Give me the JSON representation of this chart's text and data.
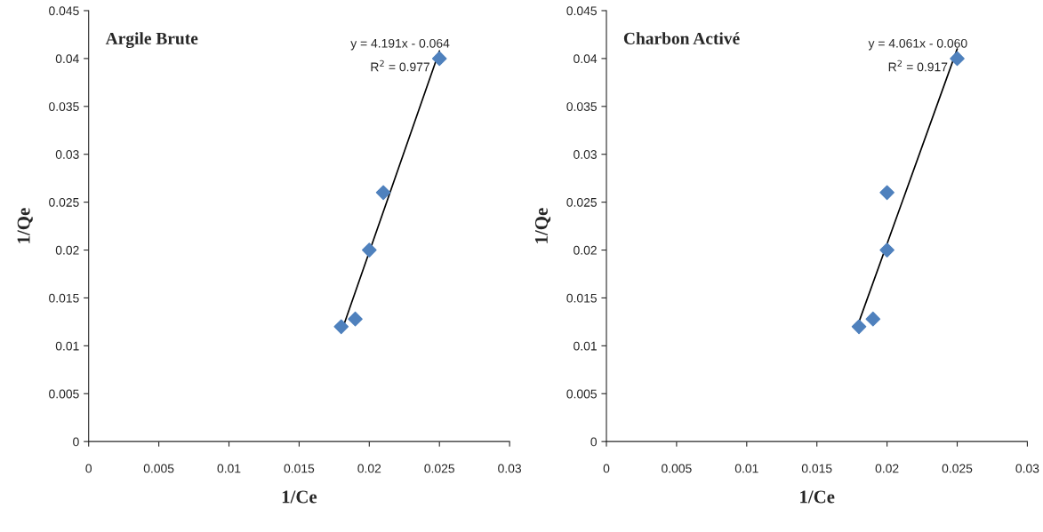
{
  "chart_data": [
    {
      "type": "scatter",
      "title": "Argile Brute",
      "xlabel": "1/Ce",
      "ylabel": "1/Qe",
      "xlim": [
        0,
        0.03
      ],
      "ylim": [
        0,
        0.045
      ],
      "xticks": [
        0,
        0.005,
        0.01,
        0.015,
        0.02,
        0.025,
        0.03
      ],
      "yticks": [
        0,
        0.005,
        0.01,
        0.015,
        0.02,
        0.025,
        0.03,
        0.035,
        0.04,
        0.045
      ],
      "grid": false,
      "legend": false,
      "series": [
        {
          "marker": "diamond",
          "color": "#4f81bd",
          "x": [
            0.018,
            0.019,
            0.02,
            0.021,
            0.025
          ],
          "values": [
            0.012,
            0.0128,
            0.02,
            0.026,
            0.04
          ]
        },
        {
          "type": "line",
          "marker": "none",
          "color": "#000000",
          "x": [
            0.018,
            0.025
          ],
          "values": [
            0.0114,
            0.0408
          ]
        }
      ],
      "annotations": [
        "y = 4.191x - 0.064",
        "R$^{2}$ = 0.977"
      ]
    },
    {
      "type": "scatter",
      "title": "Charbon Activé",
      "xlabel": "1/Ce",
      "ylabel": "1/Qe",
      "xlim": [
        0,
        0.03
      ],
      "ylim": [
        0,
        0.045
      ],
      "xticks": [
        0,
        0.005,
        0.01,
        0.015,
        0.02,
        0.025,
        0.03
      ],
      "yticks": [
        0,
        0.005,
        0.01,
        0.015,
        0.02,
        0.025,
        0.03,
        0.035,
        0.04,
        0.045
      ],
      "grid": false,
      "legend": false,
      "series": [
        {
          "marker": "diamond",
          "color": "#4f81bd",
          "x": [
            0.018,
            0.019,
            0.02,
            0.02,
            0.025
          ],
          "values": [
            0.012,
            0.0128,
            0.02,
            0.026,
            0.04
          ]
        },
        {
          "type": "line",
          "marker": "none",
          "color": "#000000",
          "x": [
            0.018,
            0.025
          ],
          "values": [
            0.0125,
            0.041
          ]
        }
      ],
      "annotations": [
        "y = 4.061x - 0.060",
        "R$^{2}$ = 0.917"
      ]
    }
  ]
}
